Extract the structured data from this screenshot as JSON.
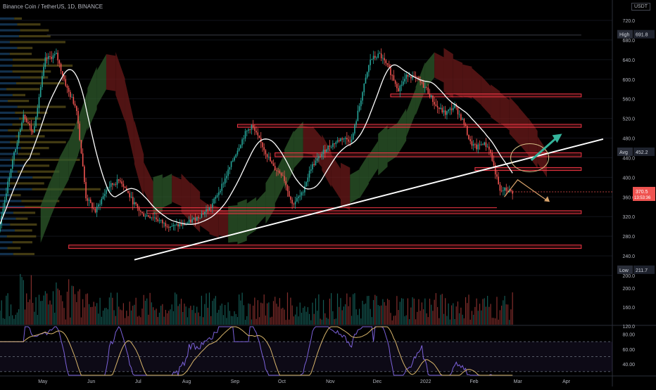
{
  "header": {
    "symbol_line": "Binance Coin / TetherUS, 1D, BINANCE",
    "currency": "USDT"
  },
  "colors": {
    "background": "#000000",
    "up": "#26a69a",
    "down": "#ef5350",
    "sma": "#ffffff",
    "trendline": "#ffffff",
    "zone": "#f23645",
    "cloud_bull": "#2e5a2b",
    "cloud_bear": "#6b1a1a",
    "vp_blue": "#16395b",
    "vp_olive": "#5a4f18",
    "rsi": "#7b61d9",
    "rsi_ma": "#d8b56b",
    "text": "#b2b5be",
    "arrow_up": "#35b59c",
    "arrow_down": "#d9a36b"
  },
  "chart_data": {
    "type": "candlestick",
    "title": "Binance Coin / TetherUS, 1D, BINANCE",
    "ylim": [
      200,
      730
    ],
    "y_ticks": [
      720,
      680,
      640,
      600,
      560,
      520,
      480,
      440,
      400,
      360,
      320,
      280,
      240,
      200
    ],
    "volume_ticks": [
      200,
      160,
      120
    ],
    "rsi_ticks": [
      "80.00",
      "60.00",
      "40.00"
    ],
    "x_tick_labels": [
      "May",
      "Jun",
      "Jul",
      "Aug",
      "Sep",
      "Oct",
      "Nov",
      "Dec",
      "2022",
      "Feb",
      "Mar",
      "Apr"
    ],
    "anchors": [
      {
        "d": 0,
        "p": 290
      },
      {
        "d": 8,
        "p": 420
      },
      {
        "d": 16,
        "p": 530
      },
      {
        "d": 22,
        "p": 490
      },
      {
        "d": 30,
        "p": 640
      },
      {
        "d": 37,
        "p": 650
      },
      {
        "d": 44,
        "p": 580
      },
      {
        "d": 50,
        "p": 540
      },
      {
        "d": 56,
        "p": 360
      },
      {
        "d": 62,
        "p": 330
      },
      {
        "d": 70,
        "p": 380
      },
      {
        "d": 78,
        "p": 395
      },
      {
        "d": 86,
        "p": 350
      },
      {
        "d": 92,
        "p": 325
      },
      {
        "d": 100,
        "p": 318
      },
      {
        "d": 106,
        "p": 305
      },
      {
        "d": 112,
        "p": 300
      },
      {
        "d": 120,
        "p": 305
      },
      {
        "d": 128,
        "p": 320
      },
      {
        "d": 136,
        "p": 340
      },
      {
        "d": 144,
        "p": 390
      },
      {
        "d": 152,
        "p": 450
      },
      {
        "d": 158,
        "p": 490
      },
      {
        "d": 162,
        "p": 505
      },
      {
        "d": 168,
        "p": 470
      },
      {
        "d": 176,
        "p": 420
      },
      {
        "d": 182,
        "p": 405
      },
      {
        "d": 188,
        "p": 345
      },
      {
        "d": 194,
        "p": 365
      },
      {
        "d": 200,
        "p": 420
      },
      {
        "d": 210,
        "p": 460
      },
      {
        "d": 220,
        "p": 480
      },
      {
        "d": 226,
        "p": 475
      },
      {
        "d": 232,
        "p": 560
      },
      {
        "d": 238,
        "p": 640
      },
      {
        "d": 244,
        "p": 650
      },
      {
        "d": 250,
        "p": 620
      },
      {
        "d": 256,
        "p": 580
      },
      {
        "d": 262,
        "p": 610
      },
      {
        "d": 268,
        "p": 600
      },
      {
        "d": 274,
        "p": 580
      },
      {
        "d": 280,
        "p": 545
      },
      {
        "d": 286,
        "p": 530
      },
      {
        "d": 292,
        "p": 545
      },
      {
        "d": 298,
        "p": 510
      },
      {
        "d": 302,
        "p": 470
      },
      {
        "d": 306,
        "p": 460
      },
      {
        "d": 310,
        "p": 470
      },
      {
        "d": 314,
        "p": 460
      },
      {
        "d": 318,
        "p": 410
      },
      {
        "d": 321,
        "p": 370
      },
      {
        "d": 324,
        "p": 375
      },
      {
        "d": 328,
        "p": 370.5
      }
    ],
    "levels": [
      {
        "label": "High",
        "price": 691.8
      },
      {
        "label": "Avg",
        "price": 452.2
      },
      {
        "label": "Low",
        "price": 211.7
      }
    ],
    "last_price": "370.5",
    "countdown": "13:53:36",
    "zones": [
      {
        "d0": 250,
        "d1": 372,
        "p0": 570,
        "p1": 564
      },
      {
        "d0": 152,
        "d1": 372,
        "p0": 508,
        "p1": 502
      },
      {
        "d0": 176,
        "d1": 372,
        "p0": 450,
        "p1": 442
      },
      {
        "d0": 304,
        "d1": 372,
        "p0": 420,
        "p1": 414
      },
      {
        "d0": 44,
        "d1": 372,
        "p0": 262,
        "p1": 255
      },
      {
        "d0": 94,
        "d1": 372,
        "p0": 332,
        "p1": 326
      }
    ],
    "horizontal_lines": [
      {
        "d0": 0,
        "d1": 318,
        "price": 338
      },
      {
        "d0": 30,
        "d1": 372,
        "price": 690
      }
    ],
    "trendline": {
      "d0": 86,
      "p0": 232,
      "d1": 386,
      "p1": 478
    },
    "annotations": {
      "circle": {
        "d": 339,
        "price": 440
      },
      "arrow_up": {
        "d0": 340,
        "p0": 435,
        "d1": 357,
        "p1": 483
      },
      "arrow_down": {
        "d0": 334,
        "p0": 415,
        "d1": 350,
        "p1": 353
      }
    }
  }
}
